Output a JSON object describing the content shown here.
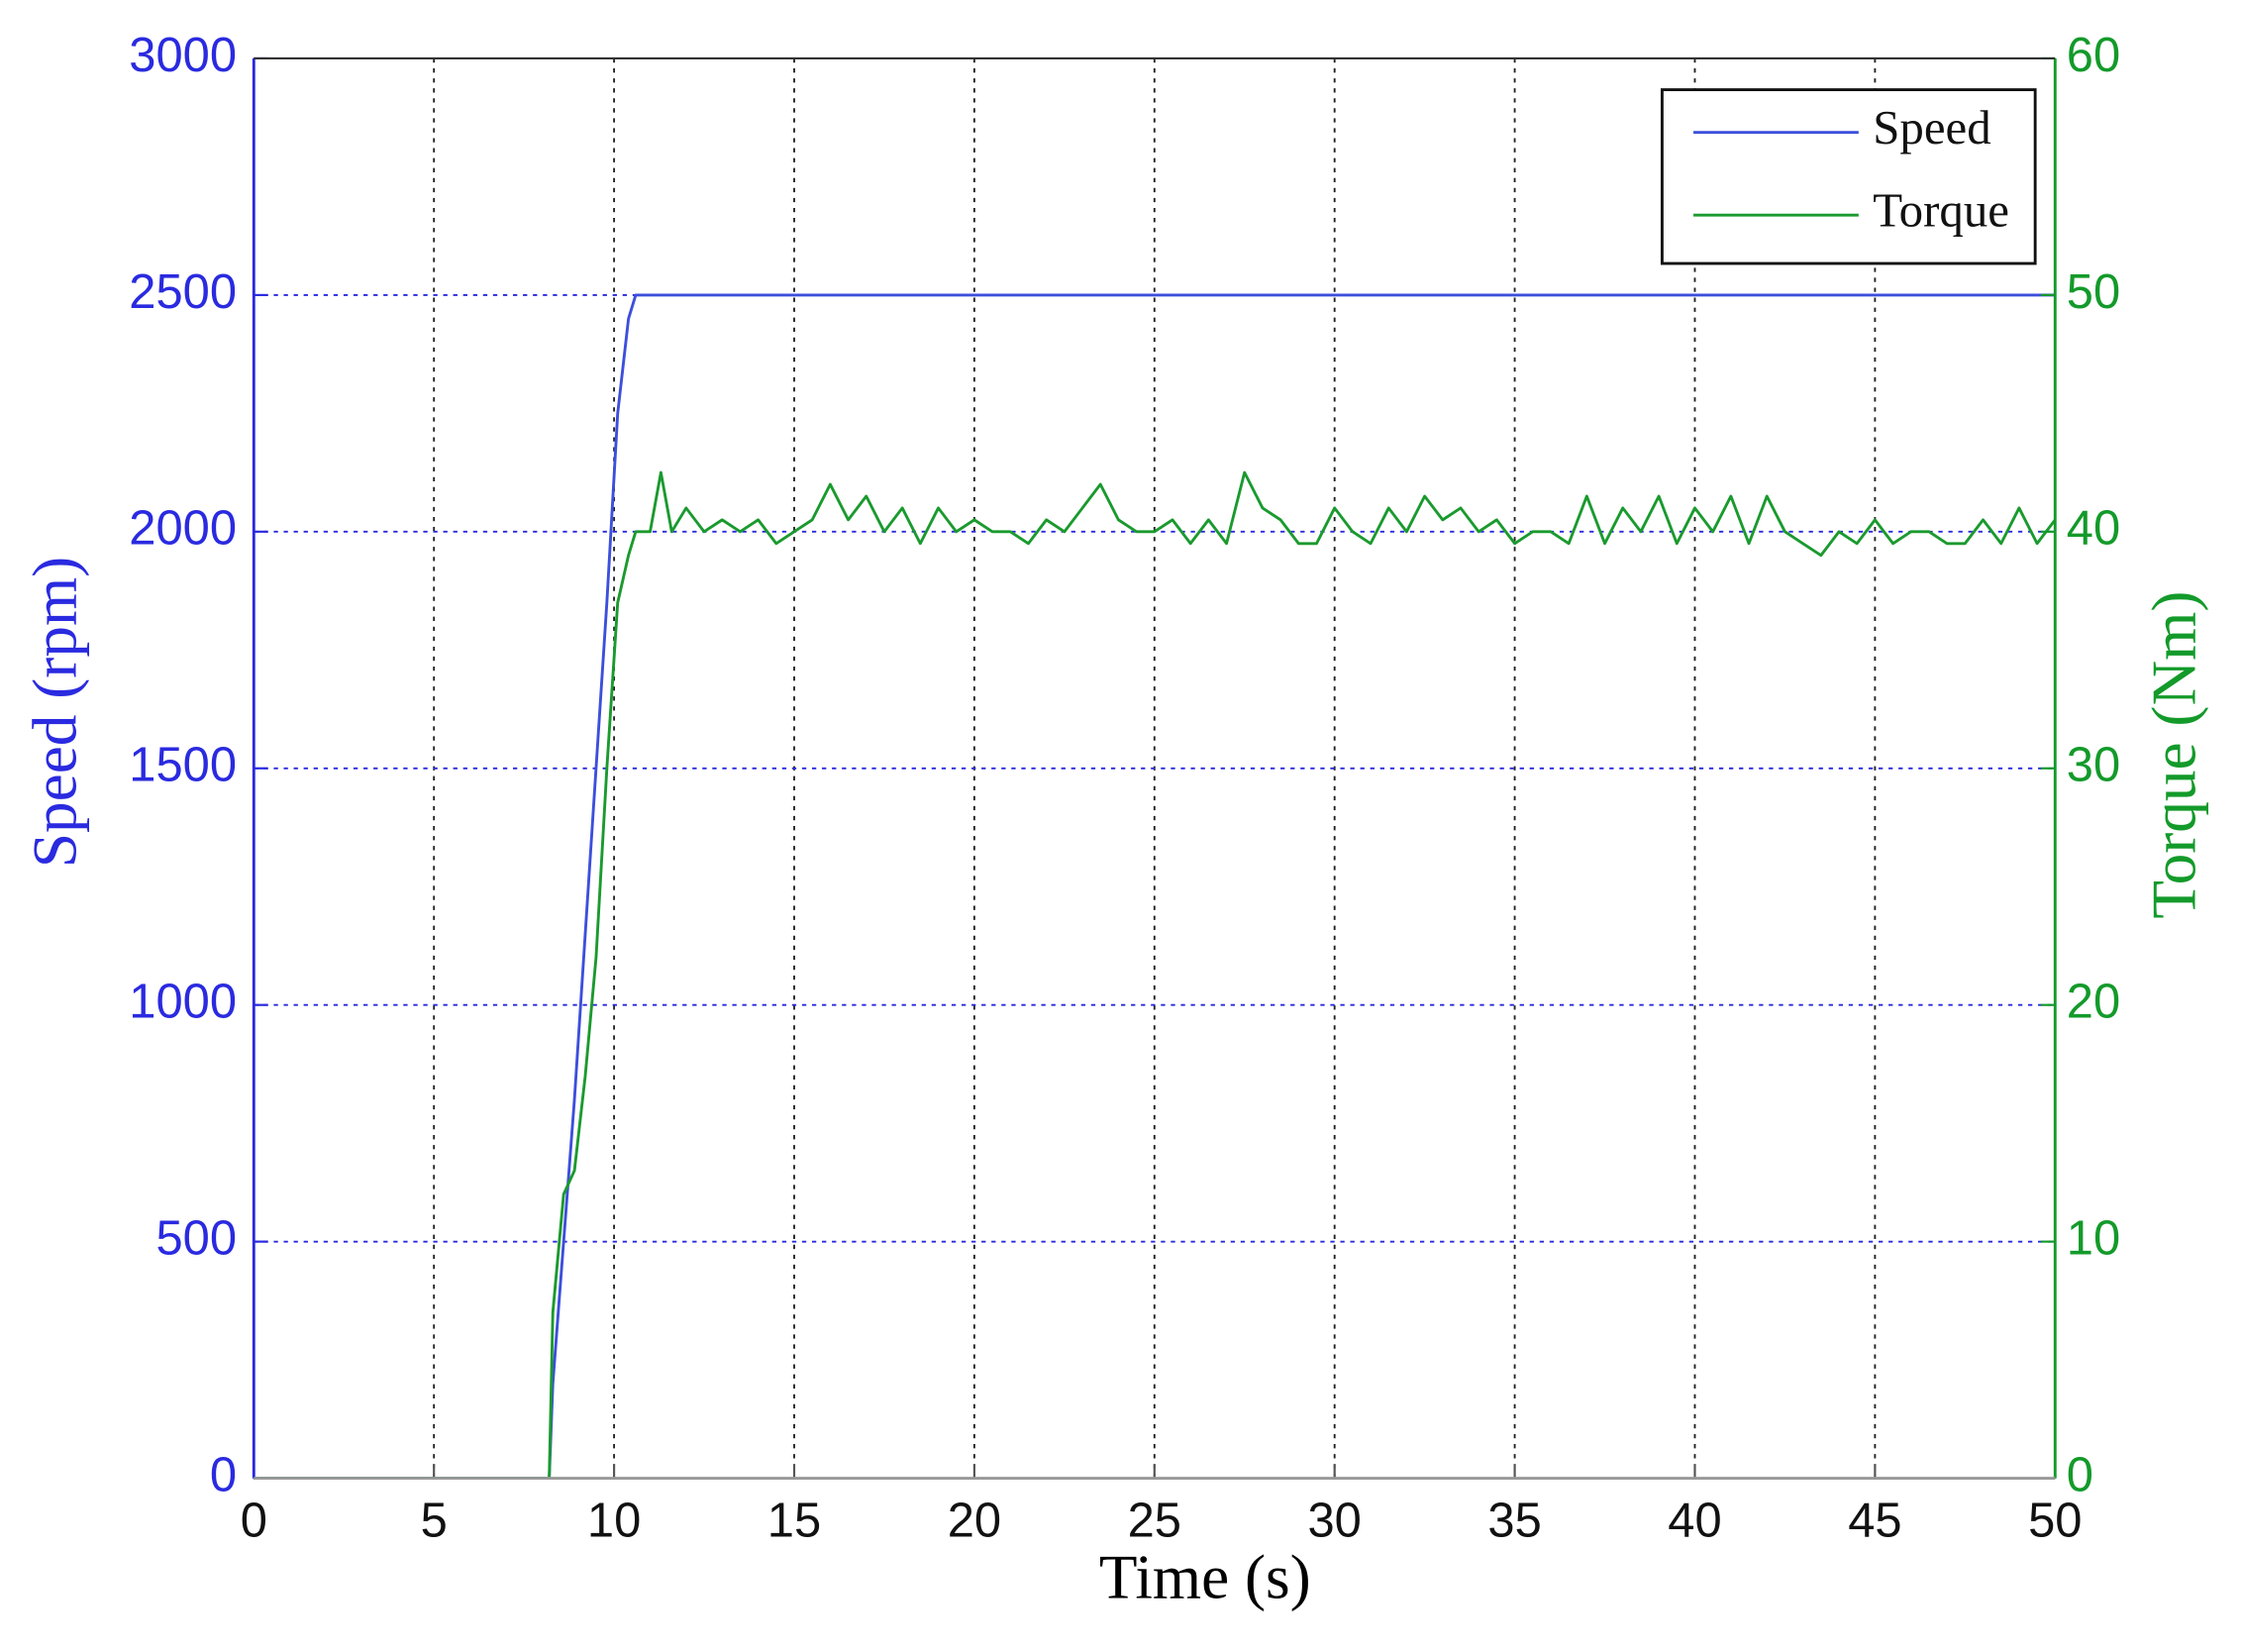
{
  "chart_data": {
    "type": "line",
    "x_label": "Time (s)",
    "y_label": "Speed (rpm)",
    "y2_label": "Torque (Nm)",
    "xlim": [
      0,
      50
    ],
    "xticks": [
      0,
      5,
      10,
      15,
      20,
      25,
      30,
      35,
      40,
      45,
      50
    ],
    "ylim": [
      0,
      3000
    ],
    "yticks": [
      0,
      500,
      1000,
      1500,
      2000,
      2500,
      3000
    ],
    "y2lim": [
      0,
      60
    ],
    "y2ticks": [
      0,
      10,
      20,
      30,
      40,
      50,
      60
    ],
    "grid": true,
    "legend": "upper-right",
    "y_color": "#2a2ae0",
    "y2_color": "#139a2a",
    "x": [
      0,
      8.2,
      8.3,
      8.6,
      8.9,
      9.2,
      9.5,
      9.8,
      10.1,
      10.4,
      10.6,
      11,
      11.3,
      11.6,
      12,
      12.5,
      13,
      13.5,
      14,
      14.5,
      15,
      15.5,
      16,
      16.5,
      17,
      17.5,
      18,
      18.5,
      19,
      19.5,
      20,
      20.5,
      21,
      21.5,
      22,
      22.5,
      23,
      23.5,
      24,
      24.5,
      25,
      25.5,
      26,
      26.5,
      27,
      27.5,
      28,
      28.5,
      29,
      29.5,
      30,
      30.5,
      31,
      31.5,
      32,
      32.5,
      33,
      33.5,
      34,
      34.5,
      35,
      35.5,
      36,
      36.5,
      37,
      37.5,
      38,
      38.5,
      39,
      39.5,
      40,
      40.5,
      41,
      41.5,
      42,
      42.5,
      43,
      43.5,
      44,
      44.5,
      45,
      45.5,
      46,
      46.5,
      47,
      47.5,
      48,
      48.5,
      49,
      49.5,
      50
    ],
    "series": [
      {
        "name": "Speed",
        "color": "#3c4fdc",
        "axis": "y",
        "values": [
          0,
          0,
          200,
          500,
          800,
          1150,
          1500,
          1850,
          2250,
          2450,
          2500,
          2500,
          2500,
          2500,
          2500,
          2500,
          2500,
          2500,
          2500,
          2500,
          2500,
          2500,
          2500,
          2500,
          2500,
          2500,
          2500,
          2500,
          2500,
          2500,
          2500,
          2500,
          2500,
          2500,
          2500,
          2500,
          2500,
          2500,
          2500,
          2500,
          2500,
          2500,
          2500,
          2500,
          2500,
          2500,
          2500,
          2500,
          2500,
          2500,
          2500,
          2500,
          2500,
          2500,
          2500,
          2500,
          2500,
          2500,
          2500,
          2500,
          2500,
          2500,
          2500,
          2500,
          2500,
          2500,
          2500,
          2500,
          2500,
          2500,
          2500,
          2500,
          2500,
          2500,
          2500,
          2500,
          2500,
          2500,
          2500,
          2500,
          2500,
          2500,
          2500,
          2500,
          2500,
          2500,
          2500,
          2500,
          2500,
          2500,
          2500
        ]
      },
      {
        "name": "Torque",
        "color": "#1a9a2e",
        "axis": "y2",
        "values": [
          0,
          0,
          7,
          12,
          13,
          17,
          22,
          30,
          37,
          39,
          40,
          40,
          42.5,
          40,
          41,
          40,
          40.5,
          40,
          40.5,
          39.5,
          40,
          40.5,
          42,
          40.5,
          41.5,
          40,
          41,
          39.5,
          41,
          40,
          40.5,
          40,
          40,
          39.5,
          40.5,
          40,
          41,
          42,
          40.5,
          40,
          40,
          40.5,
          39.5,
          40.5,
          39.5,
          42.5,
          41,
          40.5,
          39.5,
          39.5,
          41,
          40,
          39.5,
          41,
          40,
          41.5,
          40.5,
          41,
          40,
          40.5,
          39.5,
          40,
          40,
          39.5,
          41.5,
          39.5,
          41,
          40,
          41.5,
          39.5,
          41,
          40,
          41.5,
          39.5,
          41.5,
          40,
          39.5,
          39,
          40,
          39.5,
          40.5,
          39.5,
          40,
          40,
          39.5,
          39.5,
          40.5,
          39.5,
          41,
          39.5,
          40.5
        ]
      }
    ]
  }
}
